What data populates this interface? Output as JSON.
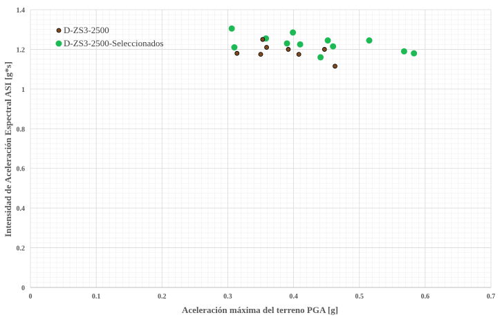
{
  "chart_data": {
    "type": "scatter",
    "title": "",
    "xlabel": "Aceleración máxima del terreno PGA [g]",
    "ylabel": "Intensidad de Aceleración Espectral ASI [g*s]",
    "xlim": [
      0,
      0.7
    ],
    "ylim": [
      0,
      1.4
    ],
    "x_ticks": [
      0,
      0.1,
      0.2,
      0.3,
      0.4,
      0.5,
      0.6,
      0.7
    ],
    "x_tick_labels": [
      "0",
      "0.1",
      "0.2",
      "0.3",
      "0.4",
      "0.5",
      "0.6",
      "0.7"
    ],
    "y_ticks": [
      0,
      0.2,
      0.4,
      0.6,
      0.8,
      1,
      1.2,
      1.4
    ],
    "y_tick_labels": [
      "0",
      "0.2",
      "0.4",
      "0.6",
      "0.8",
      "1",
      "1.2",
      "1.4"
    ],
    "grid": true,
    "legend_position": "top-left",
    "series": [
      {
        "name": "D-ZS3-2500",
        "color": "#7f4a1e",
        "points": [
          {
            "x": 0.314,
            "y": 1.18
          },
          {
            "x": 0.35,
            "y": 1.175
          },
          {
            "x": 0.353,
            "y": 1.25
          },
          {
            "x": 0.359,
            "y": 1.21
          },
          {
            "x": 0.392,
            "y": 1.2
          },
          {
            "x": 0.408,
            "y": 1.175
          },
          {
            "x": 0.447,
            "y": 1.2
          },
          {
            "x": 0.463,
            "y": 1.115
          }
        ]
      },
      {
        "name": "D-ZS3-2500-Seleccionados",
        "color": "#1db954",
        "points": [
          {
            "x": 0.306,
            "y": 1.305
          },
          {
            "x": 0.31,
            "y": 1.21
          },
          {
            "x": 0.358,
            "y": 1.255
          },
          {
            "x": 0.39,
            "y": 1.23
          },
          {
            "x": 0.399,
            "y": 1.285
          },
          {
            "x": 0.41,
            "y": 1.225
          },
          {
            "x": 0.441,
            "y": 1.16
          },
          {
            "x": 0.452,
            "y": 1.245
          },
          {
            "x": 0.46,
            "y": 1.215
          },
          {
            "x": 0.515,
            "y": 1.245
          },
          {
            "x": 0.568,
            "y": 1.19
          },
          {
            "x": 0.583,
            "y": 1.18
          }
        ]
      }
    ]
  }
}
